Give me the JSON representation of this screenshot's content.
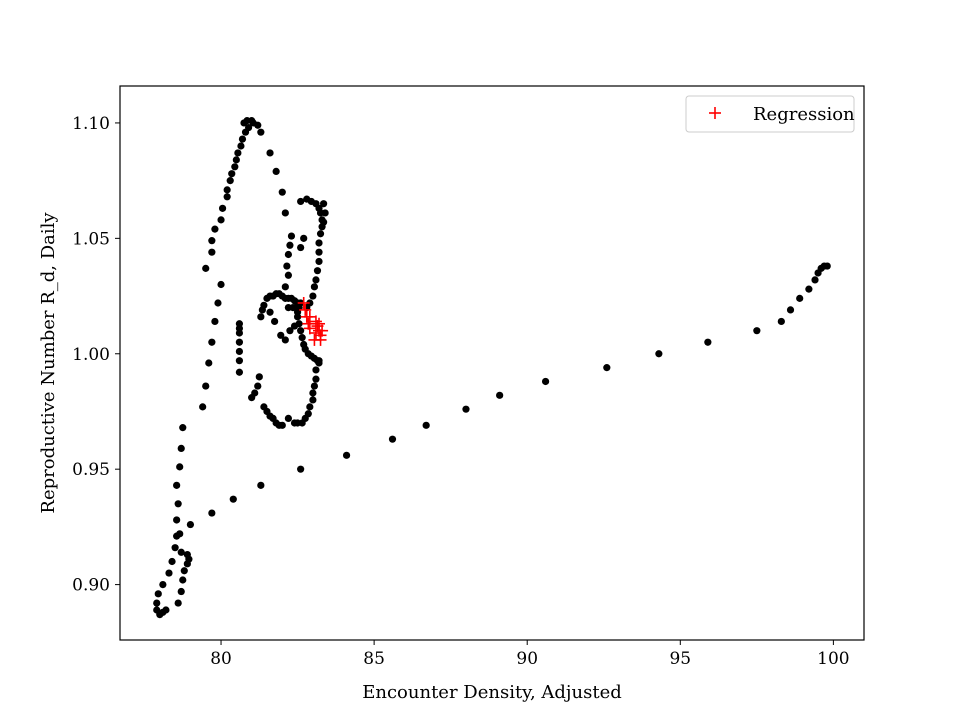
{
  "chart_data": {
    "type": "scatter",
    "xlabel": "Encounter Density, Adjusted",
    "ylabel": "Reproductive Number R_d, Daily",
    "xlim": [
      76.7,
      101.0
    ],
    "ylim": [
      0.876,
      1.116
    ],
    "xticks": [
      80,
      85,
      90,
      95,
      100
    ],
    "yticks": [
      0.9,
      0.95,
      1.0,
      1.05,
      1.1
    ],
    "xtick_labels": [
      "80",
      "85",
      "90",
      "95",
      "100"
    ],
    "ytick_labels": [
      "0.90",
      "0.95",
      "1.00",
      "1.05",
      "1.10"
    ],
    "grid": false,
    "legend_position": "top-right",
    "series": [
      {
        "name": "",
        "marker": "dot",
        "color": "#000000",
        "points": [
          [
            77.9,
            0.889
          ],
          [
            77.9,
            0.892
          ],
          [
            78.0,
            0.887
          ],
          [
            78.1,
            0.888
          ],
          [
            78.2,
            0.889
          ],
          [
            77.95,
            0.896
          ],
          [
            78.1,
            0.9
          ],
          [
            78.3,
            0.905
          ],
          [
            78.4,
            0.91
          ],
          [
            78.5,
            0.916
          ],
          [
            78.55,
            0.921
          ],
          [
            78.65,
            0.922
          ],
          [
            78.55,
            0.928
          ],
          [
            78.6,
            0.935
          ],
          [
            78.55,
            0.943
          ],
          [
            78.65,
            0.951
          ],
          [
            78.7,
            0.959
          ],
          [
            78.75,
            0.968
          ],
          [
            78.6,
            0.892
          ],
          [
            78.7,
            0.897
          ],
          [
            78.75,
            0.902
          ],
          [
            78.8,
            0.906
          ],
          [
            78.9,
            0.909
          ],
          [
            78.95,
            0.911
          ],
          [
            78.9,
            0.913
          ],
          [
            78.7,
            0.914
          ],
          [
            79.0,
            0.926
          ],
          [
            79.7,
            0.931
          ],
          [
            80.4,
            0.937
          ],
          [
            81.3,
            0.943
          ],
          [
            82.6,
            0.95
          ],
          [
            84.1,
            0.956
          ],
          [
            85.6,
            0.963
          ],
          [
            86.7,
            0.969
          ],
          [
            88.0,
            0.976
          ],
          [
            89.1,
            0.982
          ],
          [
            90.6,
            0.988
          ],
          [
            92.6,
            0.994
          ],
          [
            94.3,
            1.0
          ],
          [
            95.9,
            1.005
          ],
          [
            97.5,
            1.01
          ],
          [
            98.3,
            1.014
          ],
          [
            98.6,
            1.019
          ],
          [
            98.9,
            1.024
          ],
          [
            99.2,
            1.028
          ],
          [
            99.4,
            1.032
          ],
          [
            99.5,
            1.035
          ],
          [
            99.6,
            1.037
          ],
          [
            99.7,
            1.038
          ],
          [
            99.8,
            1.038
          ],
          [
            79.4,
            0.977
          ],
          [
            79.5,
            0.986
          ],
          [
            79.6,
            0.996
          ],
          [
            79.7,
            1.005
          ],
          [
            79.8,
            1.014
          ],
          [
            79.9,
            1.022
          ],
          [
            80.0,
            1.03
          ],
          [
            79.5,
            1.037
          ],
          [
            79.7,
            1.044
          ],
          [
            79.7,
            1.049
          ],
          [
            79.8,
            1.054
          ],
          [
            80.0,
            1.058
          ],
          [
            80.05,
            1.063
          ],
          [
            80.2,
            1.068
          ],
          [
            80.2,
            1.071
          ],
          [
            80.3,
            1.075
          ],
          [
            80.35,
            1.078
          ],
          [
            80.45,
            1.081
          ],
          [
            80.5,
            1.084
          ],
          [
            80.55,
            1.087
          ],
          [
            80.65,
            1.09
          ],
          [
            80.7,
            1.093
          ],
          [
            80.8,
            1.096
          ],
          [
            80.9,
            1.098
          ],
          [
            80.75,
            1.1
          ],
          [
            80.85,
            1.101
          ],
          [
            81.0,
            1.101
          ],
          [
            81.05,
            1.1
          ],
          [
            81.2,
            1.099
          ],
          [
            81.3,
            1.096
          ],
          [
            81.6,
            1.087
          ],
          [
            81.8,
            1.079
          ],
          [
            82.0,
            1.07
          ],
          [
            82.1,
            1.061
          ],
          [
            80.6,
            0.992
          ],
          [
            80.6,
            0.997
          ],
          [
            80.6,
            1.001
          ],
          [
            80.6,
            1.005
          ],
          [
            80.6,
            1.009
          ],
          [
            80.6,
            1.011
          ],
          [
            80.6,
            1.013
          ],
          [
            81.0,
            0.981
          ],
          [
            81.1,
            0.983
          ],
          [
            81.2,
            0.986
          ],
          [
            81.25,
            0.99
          ],
          [
            81.4,
            0.977
          ],
          [
            81.5,
            0.975
          ],
          [
            81.6,
            0.973
          ],
          [
            81.7,
            0.972
          ],
          [
            81.8,
            0.97
          ],
          [
            81.9,
            0.969
          ],
          [
            82.0,
            0.969
          ],
          [
            82.2,
            0.972
          ],
          [
            82.4,
            0.97
          ],
          [
            82.5,
            0.97
          ],
          [
            82.65,
            0.97
          ],
          [
            82.75,
            0.972
          ],
          [
            82.85,
            0.974
          ],
          [
            82.9,
            0.977
          ],
          [
            83.0,
            0.98
          ],
          [
            83.0,
            0.983
          ],
          [
            83.05,
            0.986
          ],
          [
            83.1,
            0.989
          ],
          [
            83.1,
            0.993
          ],
          [
            83.2,
            0.996
          ],
          [
            81.3,
            1.016
          ],
          [
            81.35,
            1.019
          ],
          [
            81.4,
            1.021
          ],
          [
            81.5,
            1.024
          ],
          [
            81.6,
            1.025
          ],
          [
            81.7,
            1.025
          ],
          [
            81.8,
            1.026
          ],
          [
            81.9,
            1.026
          ],
          [
            82.0,
            1.025
          ],
          [
            82.1,
            1.024
          ],
          [
            82.2,
            1.024
          ],
          [
            82.3,
            1.024
          ],
          [
            82.4,
            1.023
          ],
          [
            82.5,
            1.022
          ],
          [
            82.6,
            1.022
          ],
          [
            82.55,
            1.02
          ],
          [
            82.5,
            1.018
          ],
          [
            82.5,
            1.016
          ],
          [
            82.55,
            1.013
          ],
          [
            82.6,
            1.01
          ],
          [
            82.65,
            1.007
          ],
          [
            82.7,
            1.004
          ],
          [
            82.75,
            1.002
          ],
          [
            82.85,
            1.0
          ],
          [
            82.95,
            0.999
          ],
          [
            83.05,
            0.998
          ],
          [
            83.15,
            0.997
          ],
          [
            83.2,
            0.997
          ],
          [
            81.6,
            1.018
          ],
          [
            81.75,
            1.014
          ],
          [
            81.95,
            1.008
          ],
          [
            82.1,
            1.006
          ],
          [
            82.25,
            1.01
          ],
          [
            82.4,
            1.012
          ],
          [
            82.2,
            1.02
          ],
          [
            82.35,
            1.02
          ],
          [
            82.1,
            1.029
          ],
          [
            82.2,
            1.034
          ],
          [
            82.15,
            1.038
          ],
          [
            82.2,
            1.043
          ],
          [
            82.25,
            1.047
          ],
          [
            82.3,
            1.051
          ],
          [
            82.6,
            1.046
          ],
          [
            82.7,
            1.05
          ],
          [
            82.6,
            1.066
          ],
          [
            82.8,
            1.067
          ],
          [
            82.95,
            1.066
          ],
          [
            83.1,
            1.065
          ],
          [
            83.2,
            1.063
          ],
          [
            83.25,
            1.061
          ],
          [
            83.3,
            1.058
          ],
          [
            83.3,
            1.055
          ],
          [
            83.25,
            1.052
          ],
          [
            83.2,
            1.048
          ],
          [
            83.2,
            1.044
          ],
          [
            83.2,
            1.04
          ],
          [
            83.15,
            1.036
          ],
          [
            83.1,
            1.032
          ],
          [
            83.05,
            1.029
          ],
          [
            83.0,
            1.025
          ],
          [
            82.9,
            1.022
          ],
          [
            82.8,
            1.02
          ],
          [
            83.35,
            1.065
          ],
          [
            83.4,
            1.061
          ],
          [
            83.35,
            1.057
          ]
        ]
      },
      {
        "name": "Regression",
        "marker": "plus",
        "color": "#ff0000",
        "points": [
          [
            82.7,
            1.022
          ],
          [
            82.75,
            1.019
          ],
          [
            82.8,
            1.016
          ],
          [
            82.85,
            1.013
          ],
          [
            82.9,
            1.011
          ],
          [
            83.1,
            1.014
          ],
          [
            83.15,
            1.012
          ],
          [
            83.2,
            1.01
          ],
          [
            83.25,
            1.008
          ],
          [
            83.3,
            1.01
          ],
          [
            83.1,
            1.009
          ],
          [
            83.2,
            1.013
          ],
          [
            83.05,
            1.006
          ],
          [
            83.25,
            1.006
          ],
          [
            82.9,
            1.016
          ]
        ]
      }
    ]
  }
}
